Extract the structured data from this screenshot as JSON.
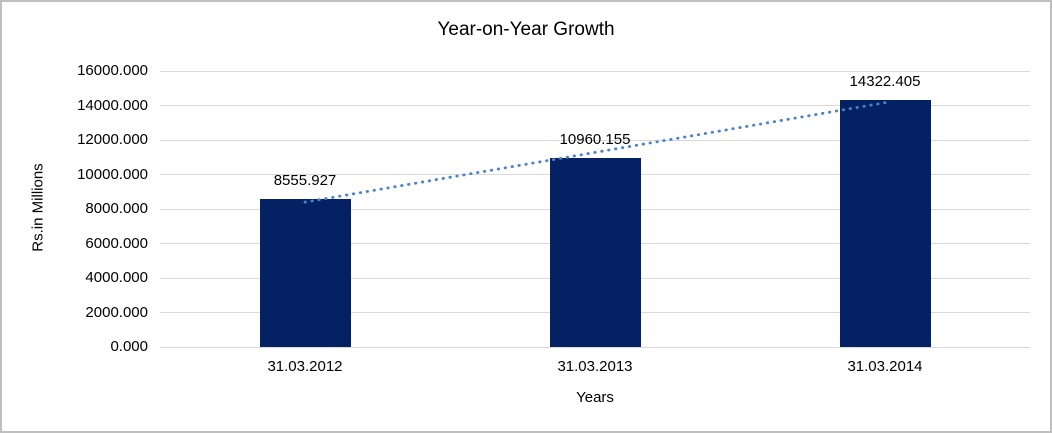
{
  "chart_data": {
    "type": "bar",
    "title": "Year-on-Year Growth",
    "xlabel": "Years",
    "ylabel": "Rs.in Millions",
    "categories": [
      "31.03.2012",
      "31.03.2013",
      "31.03.2014"
    ],
    "values": [
      8555.927,
      10960.155,
      14322.405
    ],
    "data_labels": [
      "8555.927",
      "10960.155",
      "14322.405"
    ],
    "y_ticks": [
      "0.000",
      "2000.000",
      "4000.000",
      "6000.000",
      "8000.000",
      "10000.000",
      "12000.000",
      "14000.000",
      "16000.000"
    ],
    "ylim": [
      0,
      16000
    ],
    "grid": true,
    "legend_position": "none",
    "trendline": {
      "type": "linear",
      "style": "dotted"
    },
    "colors": {
      "bar_fill": "#032163",
      "trendline": "#4a82cc",
      "gridline": "#d9d9d9",
      "text": "#000000",
      "frame_border": "#bfbfbf",
      "background": "#ffffff"
    }
  }
}
